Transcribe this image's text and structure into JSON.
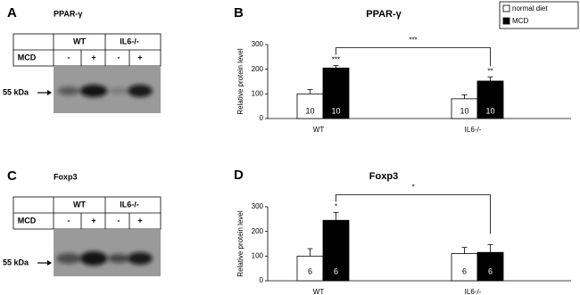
{
  "blots": [
    {
      "panel": "A",
      "title": "PPAR-γ",
      "groups": [
        "WT",
        "IL6-/-"
      ],
      "row_label": "MCD",
      "lanes": [
        "-",
        "+",
        "-",
        "+"
      ],
      "marker": "55 kDa"
    },
    {
      "panel": "C",
      "title": "Foxp3",
      "groups": [
        "WT",
        "IL6-/-"
      ],
      "row_label": "MCD",
      "lanes": [
        "-",
        "+",
        "-",
        "+"
      ],
      "marker": "55 kDa"
    }
  ],
  "chart_data": [
    {
      "type": "bar",
      "panel": "B",
      "title": "PPAR-γ",
      "ylabel": "Relative protein level",
      "categories": [
        "WT",
        "IL6-/-"
      ],
      "series": [
        {
          "name": "normal diet",
          "color": "#ffffff",
          "values": [
            100,
            80
          ],
          "errors": [
            18,
            16
          ],
          "n": [
            10,
            10
          ],
          "significance": [
            null,
            null
          ]
        },
        {
          "name": "MCD",
          "color": "#000000",
          "values": [
            205,
            152
          ],
          "errors": [
            10,
            17
          ],
          "n": [
            10,
            10
          ],
          "significance": [
            "***",
            "**"
          ]
        }
      ],
      "comparison": "***",
      "legend": true,
      "ylim": [
        0,
        300
      ],
      "yticks": [
        0,
        100,
        200,
        300
      ]
    },
    {
      "type": "bar",
      "panel": "D",
      "title": "Foxp3",
      "ylabel": "Relative protein level",
      "categories": [
        "WT",
        "IL6-/-"
      ],
      "series": [
        {
          "color": "#ffffff",
          "values": [
            100,
            110
          ],
          "errors": [
            30,
            25
          ],
          "n": [
            6,
            6
          ],
          "significance": [
            null,
            null
          ]
        },
        {
          "color": "#000000",
          "values": [
            245,
            115
          ],
          "errors": [
            32,
            32
          ],
          "n": [
            6,
            6
          ],
          "significance": [
            "*",
            null
          ]
        }
      ],
      "comparison": "*",
      "legend": false,
      "ylim": [
        0,
        300
      ],
      "yticks": [
        0,
        100,
        200,
        300
      ]
    }
  ]
}
